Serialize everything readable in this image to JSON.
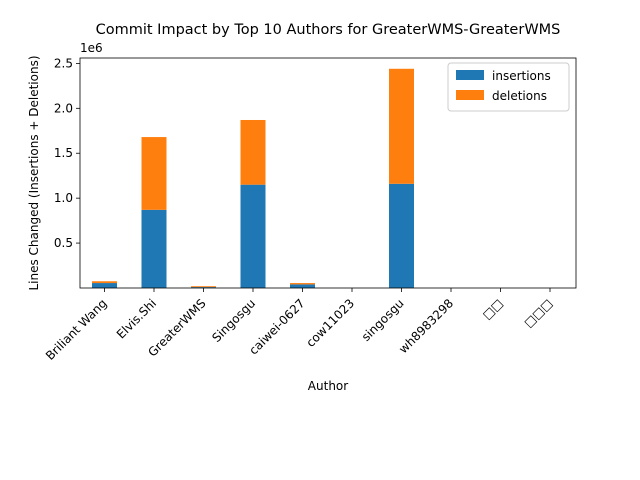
{
  "chart_data": {
    "type": "bar",
    "stacked": true,
    "title": "Commit Impact by Top 10 Authors for GreaterWMS-GreaterWMS",
    "xlabel": "Author",
    "ylabel": "Lines Changed (Insertions + Deletions)",
    "y_offset_label": "1e6",
    "categories": [
      "Briliant Wang",
      "Elvis.Shi",
      "GreaterWMS",
      "Singosgu",
      "caiwei-0627",
      "cow11023",
      "singosgu",
      "wh8983298",
      "□□",
      "□□□"
    ],
    "series": [
      {
        "name": "insertions",
        "color": "#1f77b4",
        "values": [
          55000,
          870000,
          10000,
          1150000,
          40000,
          0,
          1160000,
          0,
          0,
          0
        ]
      },
      {
        "name": "deletions",
        "color": "#ff7f0e",
        "values": [
          20000,
          810000,
          10000,
          720000,
          15000,
          0,
          1280000,
          0,
          0,
          0
        ]
      }
    ],
    "y_ticks": [
      500000,
      1000000,
      1500000,
      2000000,
      2500000
    ],
    "y_tick_labels": [
      "0.5",
      "1.0",
      "1.5",
      "2.0",
      "2.5"
    ],
    "ylim": [
      0,
      2560000
    ],
    "grid": false,
    "legend_position": "top-right"
  }
}
